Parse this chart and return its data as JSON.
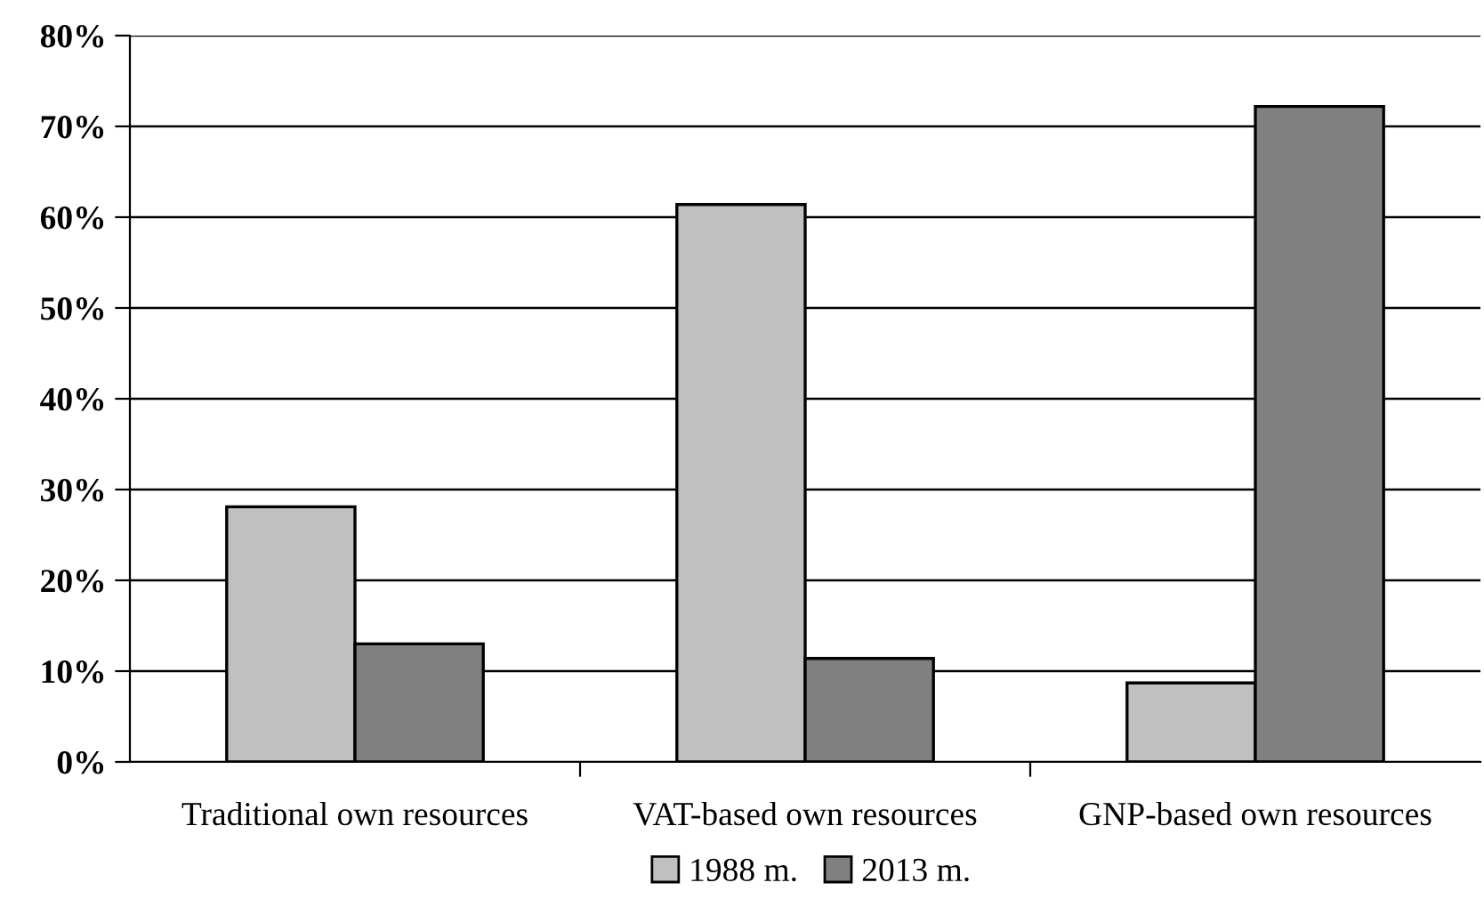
{
  "chart_data": {
    "type": "bar",
    "categories": [
      "Traditional own resources",
      "VAT-based own resources",
      "GNP-based own resources"
    ],
    "series": [
      {
        "name": "1988 m.",
        "color": "#c0c0c0",
        "values": [
          28.1,
          61.4,
          8.7
        ]
      },
      {
        "name": "2013 m.",
        "color": "#808080",
        "values": [
          13.0,
          11.4,
          72.2
        ]
      }
    ],
    "ylim": [
      0,
      80
    ],
    "yticks": [
      {
        "value": 0,
        "label": "0%"
      },
      {
        "value": 10,
        "label": "10%"
      },
      {
        "value": 20,
        "label": "20%"
      },
      {
        "value": 30,
        "label": "30%"
      },
      {
        "value": 40,
        "label": "40%"
      },
      {
        "value": 50,
        "label": "50%"
      },
      {
        "value": 60,
        "label": "60%"
      },
      {
        "value": 70,
        "label": "70%"
      },
      {
        "value": 80,
        "label": "80%"
      }
    ],
    "grid": "y",
    "legend": "bottom"
  }
}
